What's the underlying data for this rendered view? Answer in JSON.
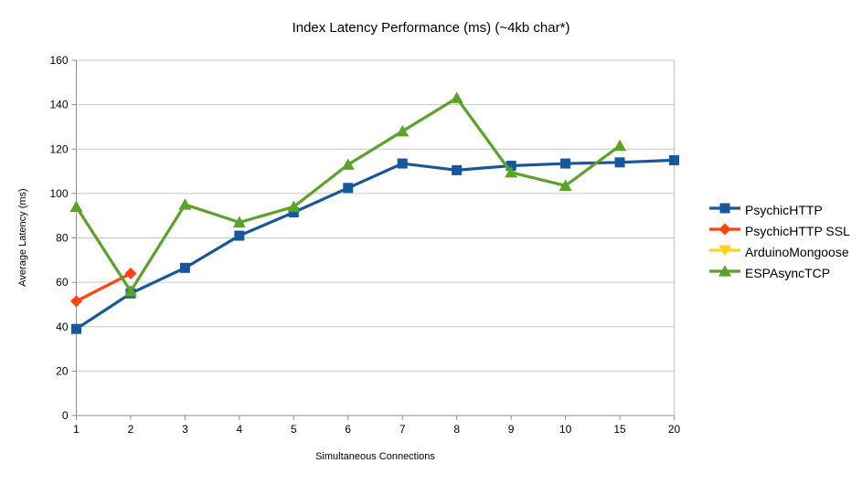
{
  "chart_data": {
    "type": "line",
    "title": "Index Latency Performance (ms) (~4kb char*)",
    "xlabel": "Simultaneous Connections",
    "ylabel": "Average Latency (ms)",
    "ylim": [
      0,
      160
    ],
    "y_ticks": [
      0,
      20,
      40,
      60,
      80,
      100,
      120,
      140,
      160
    ],
    "categories": [
      "1",
      "2",
      "3",
      "4",
      "5",
      "6",
      "7",
      "8",
      "9",
      "10",
      "15",
      "20"
    ],
    "grid": true,
    "legend_position": "right",
    "grid_color": "#c6c6c6",
    "axis_color": "#8f8f8f",
    "series": [
      {
        "name": "PsychicHTTP",
        "color": "#17579C",
        "marker": "square",
        "values": [
          39,
          55,
          66.5,
          81,
          91.5,
          102.5,
          113.5,
          110.5,
          112.5,
          113.5,
          114,
          115
        ]
      },
      {
        "name": "PsychicHTTP SSL",
        "color": "#FF420E",
        "marker": "diamond",
        "values": [
          51.5,
          64,
          null,
          null,
          null,
          null,
          null,
          null,
          null,
          null,
          null,
          null
        ]
      },
      {
        "name": "ArduinoMongoose",
        "color": "#FFD320",
        "marker": "triangle-down",
        "values": [
          null,
          null,
          null,
          null,
          null,
          null,
          null,
          null,
          null,
          null,
          null,
          null
        ]
      },
      {
        "name": "ESPAsyncTCP",
        "color": "#5BA327",
        "marker": "triangle-up",
        "values": [
          94,
          56,
          95,
          87,
          94,
          113,
          128,
          143,
          109.5,
          103.5,
          121.5,
          null
        ]
      }
    ]
  }
}
